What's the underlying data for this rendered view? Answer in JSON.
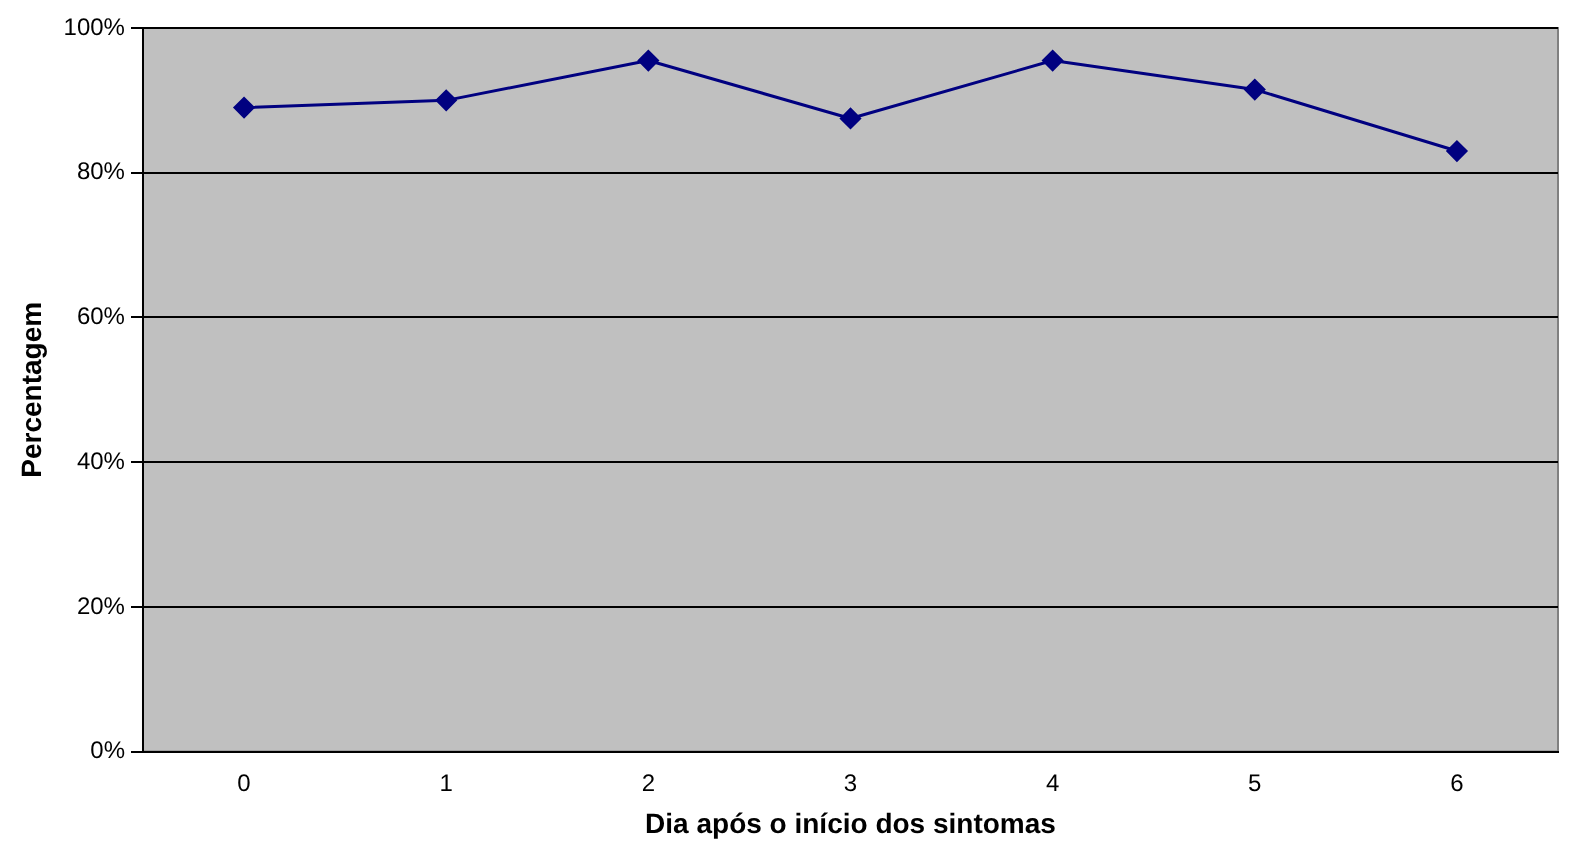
{
  "chart_data": {
    "type": "line",
    "xlabel": "Dia após o início dos sintomas",
    "ylabel": "Percentagem",
    "categories": [
      "0",
      "1",
      "2",
      "3",
      "4",
      "5",
      "6"
    ],
    "series": [
      {
        "color": "#000080",
        "values": [
          89,
          90,
          95.5,
          87.5,
          95.5,
          91.5,
          83
        ]
      }
    ],
    "ylim": [
      0,
      100
    ],
    "yticks": [
      {
        "value": 0,
        "label": "0%"
      },
      {
        "value": 20,
        "label": "20%"
      },
      {
        "value": 40,
        "label": "40%"
      },
      {
        "value": 60,
        "label": "60%"
      },
      {
        "value": 80,
        "label": "80%"
      },
      {
        "value": 100,
        "label": "100%"
      }
    ],
    "grid": "y",
    "legend": false,
    "marker": "diamond"
  }
}
